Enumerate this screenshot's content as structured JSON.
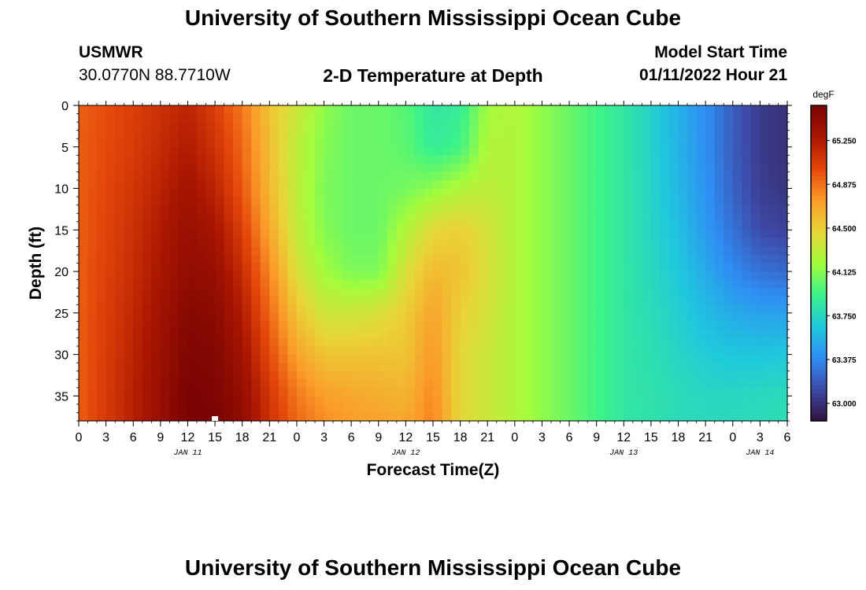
{
  "header": {
    "title": "University of Southern Mississippi Ocean Cube",
    "station": "USMWR",
    "coords": "30.0770N  88.7710W",
    "subtitle": "2-D Temperature at Depth",
    "model_start_label": "Model Start Time",
    "model_start_value": "01/11/2022 Hour 21"
  },
  "footer": {
    "title": "University of Southern Mississippi Ocean Cube"
  },
  "chart_data": {
    "type": "heatmap",
    "title": "2-D Temperature at Depth",
    "xlabel": "Forecast Time(Z)",
    "ylabel": "Depth (ft)",
    "x_hours_from_start": [
      0,
      78
    ],
    "x_tick_labels": [
      "0",
      "3",
      "6",
      "9",
      "12",
      "15",
      "18",
      "21",
      "0",
      "3",
      "6",
      "9",
      "12",
      "15",
      "18",
      "21",
      "0",
      "3",
      "6",
      "9",
      "12",
      "15",
      "18",
      "21",
      "0",
      "3",
      "6"
    ],
    "x_date_labels": [
      {
        "label": "JAN 11",
        "hour": 12
      },
      {
        "label": "JAN 12",
        "hour": 36
      },
      {
        "label": "JAN 13",
        "hour": 60
      },
      {
        "label": "JAN 14",
        "hour": 75
      }
    ],
    "y_ticks": [
      0,
      5,
      10,
      15,
      20,
      25,
      30,
      35
    ],
    "ylim": [
      0,
      38
    ],
    "colorbar": {
      "unit": "degF",
      "ticks": [
        "65.250",
        "64.875",
        "64.500",
        "64.125",
        "63.750",
        "63.375",
        "63.000"
      ],
      "range": [
        62.85,
        65.55
      ],
      "colors": [
        "#30123b",
        "#3e4aa8",
        "#2f8df4",
        "#1fc9dc",
        "#3bf28a",
        "#a4fc3c",
        "#e9d539",
        "#fb9a29",
        "#e4460a",
        "#a91601",
        "#7a0403"
      ]
    },
    "time_hours": [
      0,
      6,
      12,
      15,
      18,
      21,
      24,
      27,
      30,
      33,
      36,
      39,
      42,
      45,
      48,
      51,
      54,
      57,
      60,
      63,
      66,
      69,
      72,
      75,
      78
    ],
    "depth_ft": [
      0,
      5,
      10,
      15,
      20,
      25,
      30,
      35,
      38
    ],
    "temperature_degF": [
      [
        64.93,
        64.93,
        64.93,
        64.93,
        64.93,
        64.93,
        64.93,
        64.93,
        64.93
      ],
      [
        65.05,
        65.07,
        65.1,
        65.13,
        65.15,
        65.18,
        65.2,
        65.22,
        65.22
      ],
      [
        65.2,
        65.25,
        65.32,
        65.38,
        65.42,
        65.48,
        65.52,
        65.55,
        65.55
      ],
      [
        65.05,
        65.12,
        65.2,
        65.3,
        65.38,
        65.45,
        65.5,
        65.53,
        65.55
      ],
      [
        64.85,
        64.9,
        64.95,
        65.05,
        65.15,
        65.25,
        65.33,
        65.4,
        65.42
      ],
      [
        64.55,
        64.58,
        64.6,
        64.68,
        64.8,
        64.9,
        65.0,
        65.1,
        65.12
      ],
      [
        64.35,
        64.3,
        64.3,
        64.32,
        64.4,
        64.55,
        64.7,
        64.85,
        64.9
      ],
      [
        64.15,
        64.12,
        64.1,
        64.12,
        64.2,
        64.35,
        64.55,
        64.72,
        64.78
      ],
      [
        64.05,
        64.05,
        64.05,
        64.05,
        64.1,
        64.35,
        64.55,
        64.68,
        64.72
      ],
      [
        64.05,
        64.05,
        64.05,
        64.05,
        64.1,
        64.4,
        64.55,
        64.65,
        64.7
      ],
      [
        64.0,
        64.02,
        64.08,
        64.25,
        64.4,
        64.5,
        64.55,
        64.62,
        64.68
      ],
      [
        63.85,
        63.88,
        64.15,
        64.45,
        64.6,
        64.7,
        64.75,
        64.8,
        64.82
      ],
      [
        63.88,
        63.95,
        64.25,
        64.5,
        64.55,
        64.5,
        64.45,
        64.45,
        64.45
      ],
      [
        64.2,
        64.25,
        64.3,
        64.38,
        64.4,
        64.38,
        64.35,
        64.35,
        64.35
      ],
      [
        64.25,
        64.25,
        64.25,
        64.25,
        64.25,
        64.25,
        64.25,
        64.25,
        64.25
      ],
      [
        64.15,
        64.15,
        64.15,
        64.15,
        64.15,
        64.15,
        64.15,
        64.15,
        64.15
      ],
      [
        64.05,
        64.05,
        64.05,
        64.05,
        64.05,
        64.05,
        64.05,
        64.05,
        64.05
      ],
      [
        63.95,
        63.95,
        63.95,
        63.95,
        63.95,
        63.95,
        63.95,
        63.95,
        63.95
      ],
      [
        63.85,
        63.85,
        63.85,
        63.85,
        63.85,
        63.85,
        63.85,
        63.85,
        63.85
      ],
      [
        63.72,
        63.72,
        63.73,
        63.74,
        63.76,
        63.78,
        63.8,
        63.82,
        63.82
      ],
      [
        63.55,
        63.56,
        63.58,
        63.62,
        63.66,
        63.7,
        63.74,
        63.78,
        63.78
      ],
      [
        63.4,
        63.4,
        63.42,
        63.45,
        63.52,
        63.6,
        63.68,
        63.75,
        63.76
      ],
      [
        63.2,
        63.2,
        63.22,
        63.28,
        63.38,
        63.52,
        63.65,
        63.75,
        63.77
      ],
      [
        63.05,
        63.05,
        63.06,
        63.12,
        63.28,
        63.48,
        63.65,
        63.76,
        63.78
      ],
      [
        63.0,
        63.0,
        63.02,
        63.08,
        63.25,
        63.48,
        63.66,
        63.78,
        63.8
      ]
    ]
  }
}
